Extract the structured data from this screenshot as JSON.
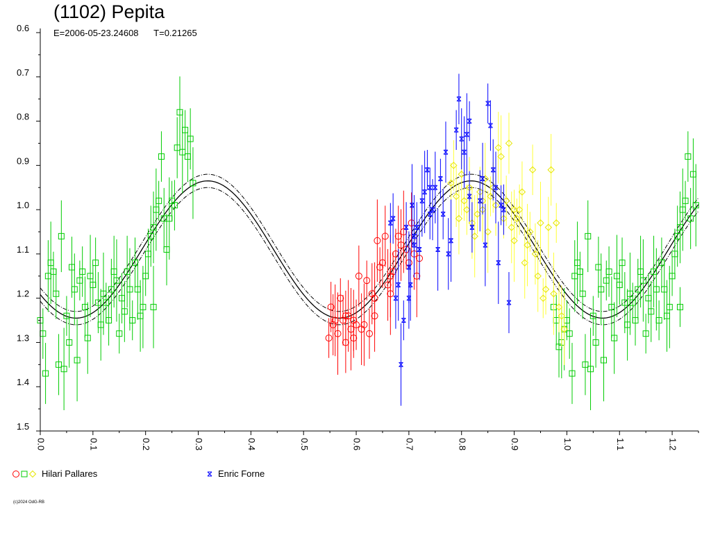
{
  "header": {
    "title": "(1102) Pepita",
    "epoch": "E=2006-05-23.24608",
    "period": "T=0.21265"
  },
  "legend": [
    {
      "label": "Hilari Pallares",
      "colors": [
        "#ff0000",
        "#00cc00",
        "#ffff00"
      ],
      "symbols": [
        "circle",
        "square",
        "diamond"
      ]
    },
    {
      "label": "Enric Forne",
      "colors": [
        "#0000ff"
      ],
      "symbols": [
        "star"
      ]
    }
  ],
  "copyright": "(c)2024 OdG-RB",
  "chart_data": {
    "type": "scatter",
    "title": "(1102) Pepita",
    "xlabel": "",
    "ylabel": "",
    "xlim": [
      0.0,
      1.25
    ],
    "ylim": [
      0.6,
      1.5
    ],
    "y_inverted": true,
    "x_ticks": [
      "0.0",
      "0.1",
      "0.2",
      "0.3",
      "0.4",
      "0.5",
      "0.6",
      "0.7",
      "0.8",
      "0.9",
      "1.0",
      "1.1",
      "1.2"
    ],
    "y_ticks": [
      "0.6",
      "0.7",
      "0.8",
      "0.9",
      "1.0",
      "1.1",
      "1.2",
      "1.3",
      "1.4",
      "1.5"
    ],
    "grid": false,
    "fit_curve": {
      "type": "fourier",
      "mean": 1.09,
      "amplitude": 0.155,
      "min_phase": 0.068,
      "max_phase": 0.322,
      "envelope_offset": 0.015
    },
    "series": [
      {
        "name": "Hilari Pallares",
        "color": "#00cc00",
        "marker": "square",
        "points": [
          [
            0.0,
            1.25
          ],
          [
            0.005,
            1.28
          ],
          [
            0.01,
            1.37
          ],
          [
            0.015,
            1.15
          ],
          [
            0.02,
            1.12
          ],
          [
            0.025,
            1.14
          ],
          [
            0.03,
            1.19
          ],
          [
            0.035,
            1.35
          ],
          [
            0.04,
            1.06
          ],
          [
            0.045,
            1.36
          ],
          [
            0.05,
            1.24
          ],
          [
            0.055,
            1.3
          ],
          [
            0.06,
            1.13
          ],
          [
            0.065,
            1.18
          ],
          [
            0.07,
            1.34
          ],
          [
            0.075,
            1.16
          ],
          [
            0.08,
            1.14
          ],
          [
            0.085,
            1.22
          ],
          [
            0.09,
            1.29
          ],
          [
            0.095,
            1.15
          ],
          [
            0.1,
            1.17
          ],
          [
            0.105,
            1.12
          ],
          [
            0.11,
            1.21
          ],
          [
            0.115,
            1.26
          ],
          [
            0.12,
            1.19
          ],
          [
            0.125,
            1.21
          ],
          [
            0.13,
            1.25
          ],
          [
            0.135,
            1.18
          ],
          [
            0.14,
            1.14
          ],
          [
            0.145,
            1.16
          ],
          [
            0.15,
            1.28
          ],
          [
            0.155,
            1.2
          ],
          [
            0.16,
            1.23
          ],
          [
            0.165,
            1.14
          ],
          [
            0.17,
            1.18
          ],
          [
            0.175,
            1.25
          ],
          [
            0.18,
            1.12
          ],
          [
            0.185,
            1.18
          ],
          [
            0.19,
            1.24
          ],
          [
            0.195,
            1.22
          ],
          [
            0.2,
            1.15
          ],
          [
            0.205,
            1.1
          ],
          [
            0.21,
            1.06
          ],
          [
            0.215,
            1.04
          ],
          [
            0.22,
            1.0
          ],
          [
            0.225,
            0.98
          ],
          [
            0.23,
            0.88
          ],
          [
            0.235,
            1.02
          ],
          [
            0.24,
            1.09
          ],
          [
            0.245,
            1.02
          ],
          [
            0.25,
            0.98
          ],
          [
            0.255,
            0.99
          ],
          [
            0.26,
            0.86
          ],
          [
            0.265,
            0.78
          ],
          [
            0.27,
            0.87
          ],
          [
            0.275,
            0.82
          ],
          [
            0.28,
            0.88
          ],
          [
            0.285,
            0.84
          ],
          [
            0.29,
            0.94
          ],
          [
            0.215,
            1.22
          ],
          [
            0.975,
            1.22
          ],
          [
            0.98,
            1.25
          ],
          [
            0.985,
            1.31
          ],
          [
            0.99,
            1.3
          ],
          [
            0.995,
            1.27
          ],
          [
            1.0,
            1.25
          ],
          [
            1.005,
            1.28
          ],
          [
            1.01,
            1.37
          ],
          [
            1.015,
            1.15
          ],
          [
            1.02,
            1.12
          ],
          [
            1.025,
            1.14
          ],
          [
            1.03,
            1.19
          ],
          [
            1.035,
            1.35
          ],
          [
            1.04,
            1.06
          ],
          [
            1.045,
            1.36
          ],
          [
            1.05,
            1.24
          ],
          [
            1.055,
            1.3
          ],
          [
            1.06,
            1.13
          ],
          [
            1.065,
            1.18
          ],
          [
            1.07,
            1.34
          ],
          [
            1.075,
            1.16
          ],
          [
            1.08,
            1.14
          ],
          [
            1.085,
            1.22
          ],
          [
            1.09,
            1.29
          ],
          [
            1.095,
            1.15
          ],
          [
            1.1,
            1.17
          ],
          [
            1.105,
            1.12
          ],
          [
            1.11,
            1.21
          ],
          [
            1.115,
            1.26
          ],
          [
            1.12,
            1.19
          ],
          [
            1.125,
            1.21
          ],
          [
            1.13,
            1.25
          ],
          [
            1.135,
            1.18
          ],
          [
            1.14,
            1.14
          ],
          [
            1.145,
            1.16
          ],
          [
            1.15,
            1.28
          ],
          [
            1.155,
            1.2
          ],
          [
            1.16,
            1.23
          ],
          [
            1.165,
            1.14
          ],
          [
            1.17,
            1.18
          ],
          [
            1.175,
            1.25
          ],
          [
            1.18,
            1.12
          ],
          [
            1.185,
            1.18
          ],
          [
            1.19,
            1.24
          ],
          [
            1.195,
            1.22
          ],
          [
            1.2,
            1.15
          ],
          [
            1.205,
            1.1
          ],
          [
            1.21,
            1.06
          ],
          [
            1.215,
            1.04
          ],
          [
            1.22,
            1.0
          ],
          [
            1.225,
            0.98
          ],
          [
            1.23,
            0.88
          ],
          [
            1.235,
            1.02
          ],
          [
            1.24,
            0.92
          ],
          [
            1.245,
            0.99
          ],
          [
            1.215,
            1.22
          ]
        ]
      },
      {
        "name": "Hilari Pallares",
        "color": "#ff0000",
        "marker": "circle",
        "points": [
          [
            0.548,
            1.29
          ],
          [
            0.552,
            1.22
          ],
          [
            0.556,
            1.26
          ],
          [
            0.56,
            1.25
          ],
          [
            0.565,
            1.28
          ],
          [
            0.57,
            1.2
          ],
          [
            0.575,
            1.25
          ],
          [
            0.58,
            1.3
          ],
          [
            0.585,
            1.24
          ],
          [
            0.59,
            1.27
          ],
          [
            0.595,
            1.29
          ],
          [
            0.6,
            1.26
          ],
          [
            0.605,
            1.15
          ],
          [
            0.61,
            1.27
          ],
          [
            0.615,
            1.26
          ],
          [
            0.62,
            1.16
          ],
          [
            0.625,
            1.28
          ],
          [
            0.63,
            1.19
          ],
          [
            0.635,
            1.24
          ],
          [
            0.64,
            1.07
          ],
          [
            0.645,
            1.13
          ],
          [
            0.65,
            1.12
          ],
          [
            0.655,
            1.06
          ],
          [
            0.66,
            1.17
          ],
          [
            0.665,
            1.19
          ],
          [
            0.67,
            1.14
          ],
          [
            0.675,
            1.1
          ],
          [
            0.68,
            1.06
          ],
          [
            0.685,
            1.08
          ],
          [
            0.69,
            1.05
          ],
          [
            0.695,
            1.09
          ],
          [
            0.7,
            1.12
          ],
          [
            0.705,
            1.03
          ],
          [
            0.71,
            1.1
          ],
          [
            0.715,
            1.15
          ],
          [
            0.72,
            1.11
          ],
          [
            0.58,
            1.24
          ],
          [
            0.595,
            1.25
          ],
          [
            0.635,
            1.2
          ],
          [
            0.665,
            1.15
          ]
        ]
      },
      {
        "name": "Hilari Pallares",
        "color": "#ffff00",
        "marker": "diamond",
        "points": [
          [
            0.78,
            0.94
          ],
          [
            0.785,
            0.9
          ],
          [
            0.79,
            0.97
          ],
          [
            0.795,
            1.02
          ],
          [
            0.8,
            0.92
          ],
          [
            0.805,
            0.98
          ],
          [
            0.81,
            1.0
          ],
          [
            0.815,
            0.95
          ],
          [
            0.82,
            1.03
          ],
          [
            0.825,
            1.06
          ],
          [
            0.83,
            1.01
          ],
          [
            0.835,
            0.96
          ],
          [
            0.84,
            1.0
          ],
          [
            0.845,
            0.93
          ],
          [
            0.85,
            1.05
          ],
          [
            0.855,
            0.97
          ],
          [
            0.86,
            0.95
          ],
          [
            0.865,
            0.99
          ],
          [
            0.87,
            0.86
          ],
          [
            0.875,
            0.88
          ],
          [
            0.88,
            1.02
          ],
          [
            0.885,
            0.98
          ],
          [
            0.89,
            0.85
          ],
          [
            0.895,
            1.04
          ],
          [
            0.9,
            1.07
          ],
          [
            0.905,
            1.02
          ],
          [
            0.91,
            1.0
          ],
          [
            0.915,
            0.96
          ],
          [
            0.92,
            1.12
          ],
          [
            0.925,
            1.08
          ],
          [
            0.93,
            1.05
          ],
          [
            0.935,
            0.91
          ],
          [
            0.94,
            1.1
          ],
          [
            0.945,
            1.15
          ],
          [
            0.95,
            1.03
          ],
          [
            0.955,
            1.2
          ],
          [
            0.96,
            1.18
          ],
          [
            0.965,
            1.04
          ],
          [
            0.97,
            0.91
          ],
          [
            0.975,
            1.19
          ],
          [
            0.98,
            1.03
          ],
          [
            0.985,
            1.22
          ],
          [
            0.99,
            1.24
          ],
          [
            0.995,
            1.27
          ],
          [
            0.84,
            0.98
          ],
          [
            0.9,
            1.0
          ]
        ]
      },
      {
        "name": "Enric Forne",
        "color": "#0000ff",
        "marker": "star",
        "points": [
          [
            0.665,
            1.03
          ],
          [
            0.67,
            1.02
          ],
          [
            0.675,
            1.2
          ],
          [
            0.68,
            1.17
          ],
          [
            0.685,
            1.35
          ],
          [
            0.69,
            1.25
          ],
          [
            0.695,
            1.04
          ],
          [
            0.7,
            1.2
          ],
          [
            0.703,
            1.17
          ],
          [
            0.706,
            0.99
          ],
          [
            0.71,
            1.08
          ],
          [
            0.715,
            1.04
          ],
          [
            0.72,
            1.09
          ],
          [
            0.725,
            0.98
          ],
          [
            0.73,
            0.96
          ],
          [
            0.735,
            0.91
          ],
          [
            0.74,
            1.01
          ],
          [
            0.745,
            1.0
          ],
          [
            0.75,
            0.95
          ],
          [
            0.755,
            1.09
          ],
          [
            0.76,
            0.93
          ],
          [
            0.765,
            1.01
          ],
          [
            0.77,
            0.87
          ],
          [
            0.775,
            1.1
          ],
          [
            0.78,
            1.07
          ],
          [
            0.79,
            0.82
          ],
          [
            0.795,
            0.75
          ],
          [
            0.8,
            0.84
          ],
          [
            0.805,
            0.87
          ],
          [
            0.81,
            0.83
          ],
          [
            0.815,
            0.8
          ],
          [
            0.82,
            1.04
          ],
          [
            0.835,
            0.98
          ],
          [
            0.84,
            0.93
          ],
          [
            0.845,
            1.08
          ],
          [
            0.85,
            0.76
          ],
          [
            0.855,
            0.81
          ],
          [
            0.86,
            0.91
          ],
          [
            0.865,
            0.95
          ],
          [
            0.87,
            1.12
          ],
          [
            0.875,
            0.99
          ],
          [
            0.88,
            1.0
          ],
          [
            0.89,
            1.21
          ],
          [
            0.7,
            1.13
          ],
          [
            0.71,
            1.06
          ],
          [
            0.74,
            0.95
          ],
          [
            0.815,
            0.97
          ]
        ]
      }
    ]
  }
}
